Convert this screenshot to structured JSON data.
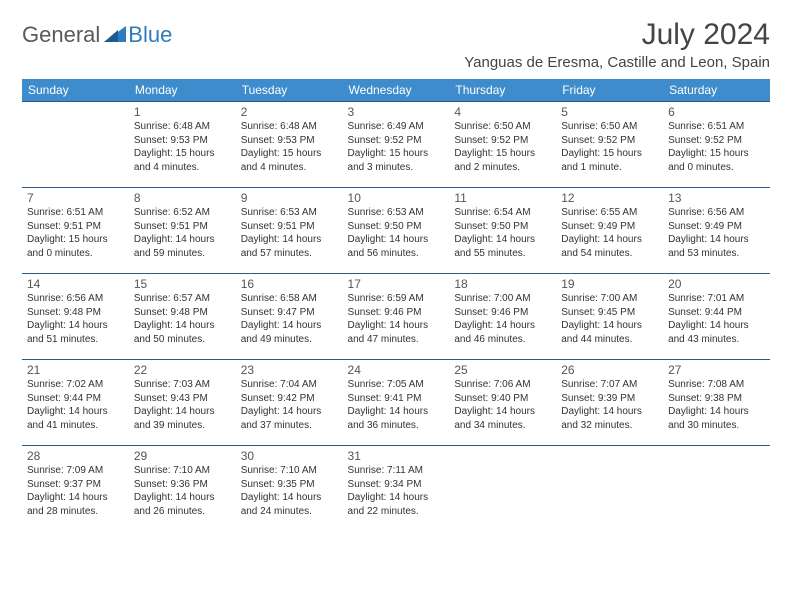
{
  "brand": {
    "part1": "General",
    "part2": "Blue"
  },
  "title": "July 2024",
  "location": "Yanguas de Eresma, Castille and Leon, Spain",
  "colors": {
    "header_bg": "#3e8ccc",
    "header_text": "#ffffff",
    "row_border": "#2a5a8a",
    "logo_gray": "#5a5a5a",
    "logo_blue": "#2f7bbf",
    "body_text": "#333333",
    "title_text": "#444444",
    "background": "#ffffff"
  },
  "typography": {
    "title_fontsize": 30,
    "location_fontsize": 15,
    "header_fontsize": 12,
    "daynum_fontsize": 12,
    "info_fontsize": 10,
    "logo_fontsize": 22
  },
  "days_of_week": [
    "Sunday",
    "Monday",
    "Tuesday",
    "Wednesday",
    "Thursday",
    "Friday",
    "Saturday"
  ],
  "weeks": [
    [
      null,
      {
        "n": "1",
        "sr": "6:48 AM",
        "ss": "9:53 PM",
        "dl": "15 hours and 4 minutes."
      },
      {
        "n": "2",
        "sr": "6:48 AM",
        "ss": "9:53 PM",
        "dl": "15 hours and 4 minutes."
      },
      {
        "n": "3",
        "sr": "6:49 AM",
        "ss": "9:52 PM",
        "dl": "15 hours and 3 minutes."
      },
      {
        "n": "4",
        "sr": "6:50 AM",
        "ss": "9:52 PM",
        "dl": "15 hours and 2 minutes."
      },
      {
        "n": "5",
        "sr": "6:50 AM",
        "ss": "9:52 PM",
        "dl": "15 hours and 1 minute."
      },
      {
        "n": "6",
        "sr": "6:51 AM",
        "ss": "9:52 PM",
        "dl": "15 hours and 0 minutes."
      }
    ],
    [
      {
        "n": "7",
        "sr": "6:51 AM",
        "ss": "9:51 PM",
        "dl": "15 hours and 0 minutes."
      },
      {
        "n": "8",
        "sr": "6:52 AM",
        "ss": "9:51 PM",
        "dl": "14 hours and 59 minutes."
      },
      {
        "n": "9",
        "sr": "6:53 AM",
        "ss": "9:51 PM",
        "dl": "14 hours and 57 minutes."
      },
      {
        "n": "10",
        "sr": "6:53 AM",
        "ss": "9:50 PM",
        "dl": "14 hours and 56 minutes."
      },
      {
        "n": "11",
        "sr": "6:54 AM",
        "ss": "9:50 PM",
        "dl": "14 hours and 55 minutes."
      },
      {
        "n": "12",
        "sr": "6:55 AM",
        "ss": "9:49 PM",
        "dl": "14 hours and 54 minutes."
      },
      {
        "n": "13",
        "sr": "6:56 AM",
        "ss": "9:49 PM",
        "dl": "14 hours and 53 minutes."
      }
    ],
    [
      {
        "n": "14",
        "sr": "6:56 AM",
        "ss": "9:48 PM",
        "dl": "14 hours and 51 minutes."
      },
      {
        "n": "15",
        "sr": "6:57 AM",
        "ss": "9:48 PM",
        "dl": "14 hours and 50 minutes."
      },
      {
        "n": "16",
        "sr": "6:58 AM",
        "ss": "9:47 PM",
        "dl": "14 hours and 49 minutes."
      },
      {
        "n": "17",
        "sr": "6:59 AM",
        "ss": "9:46 PM",
        "dl": "14 hours and 47 minutes."
      },
      {
        "n": "18",
        "sr": "7:00 AM",
        "ss": "9:46 PM",
        "dl": "14 hours and 46 minutes."
      },
      {
        "n": "19",
        "sr": "7:00 AM",
        "ss": "9:45 PM",
        "dl": "14 hours and 44 minutes."
      },
      {
        "n": "20",
        "sr": "7:01 AM",
        "ss": "9:44 PM",
        "dl": "14 hours and 43 minutes."
      }
    ],
    [
      {
        "n": "21",
        "sr": "7:02 AM",
        "ss": "9:44 PM",
        "dl": "14 hours and 41 minutes."
      },
      {
        "n": "22",
        "sr": "7:03 AM",
        "ss": "9:43 PM",
        "dl": "14 hours and 39 minutes."
      },
      {
        "n": "23",
        "sr": "7:04 AM",
        "ss": "9:42 PM",
        "dl": "14 hours and 37 minutes."
      },
      {
        "n": "24",
        "sr": "7:05 AM",
        "ss": "9:41 PM",
        "dl": "14 hours and 36 minutes."
      },
      {
        "n": "25",
        "sr": "7:06 AM",
        "ss": "9:40 PM",
        "dl": "14 hours and 34 minutes."
      },
      {
        "n": "26",
        "sr": "7:07 AM",
        "ss": "9:39 PM",
        "dl": "14 hours and 32 minutes."
      },
      {
        "n": "27",
        "sr": "7:08 AM",
        "ss": "9:38 PM",
        "dl": "14 hours and 30 minutes."
      }
    ],
    [
      {
        "n": "28",
        "sr": "7:09 AM",
        "ss": "9:37 PM",
        "dl": "14 hours and 28 minutes."
      },
      {
        "n": "29",
        "sr": "7:10 AM",
        "ss": "9:36 PM",
        "dl": "14 hours and 26 minutes."
      },
      {
        "n": "30",
        "sr": "7:10 AM",
        "ss": "9:35 PM",
        "dl": "14 hours and 24 minutes."
      },
      {
        "n": "31",
        "sr": "7:11 AM",
        "ss": "9:34 PM",
        "dl": "14 hours and 22 minutes."
      },
      null,
      null,
      null
    ]
  ],
  "labels": {
    "sunrise": "Sunrise:",
    "sunset": "Sunset:",
    "daylight": "Daylight:"
  }
}
